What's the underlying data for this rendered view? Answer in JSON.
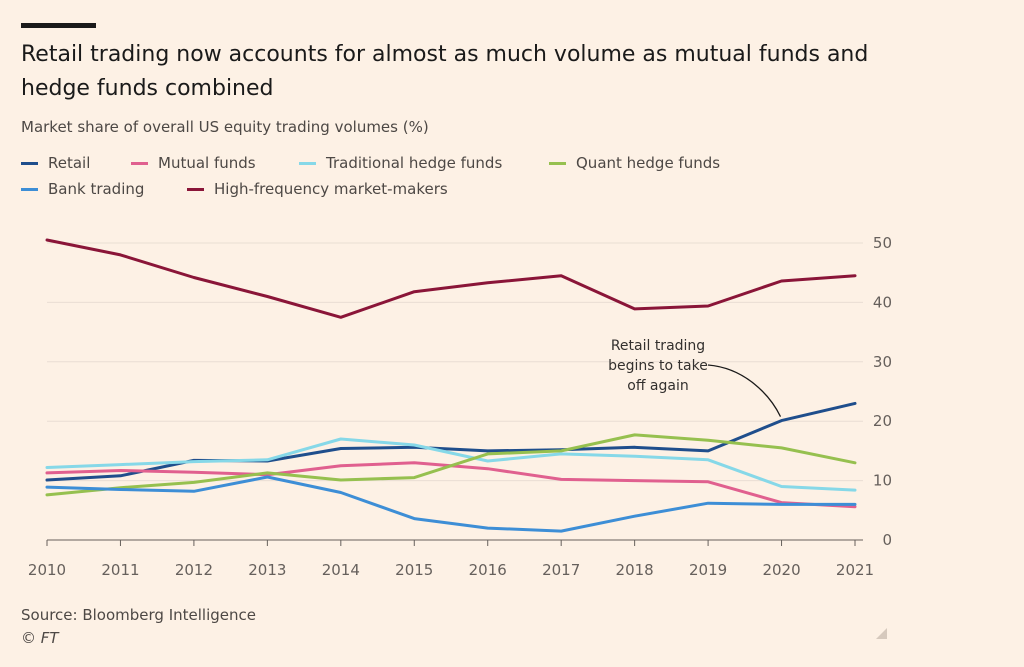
{
  "chart_data": {
    "type": "line",
    "title": "Retail trading now accounts for almost as much volume as mutual funds and hedge funds combined",
    "subtitle": "Market share of overall US equity trading volumes (%)",
    "x": [
      "2010",
      "2011",
      "2012",
      "2013",
      "2014",
      "2015",
      "2016",
      "2017",
      "2018",
      "2019",
      "2020",
      "2021"
    ],
    "ylim": [
      0,
      50
    ],
    "yticks": [
      "0",
      "10",
      "20",
      "30",
      "40",
      "50"
    ],
    "grid": true,
    "legend_position": "top-left",
    "series": [
      {
        "name": "Retail",
        "color": "#1f4e8c",
        "values": [
          10.1,
          10.8,
          13.4,
          13.3,
          15.4,
          15.6,
          15.0,
          15.2,
          15.6,
          15.0,
          20.1,
          23.0
        ]
      },
      {
        "name": "Mutual funds",
        "color": "#e0608f",
        "values": [
          11.3,
          11.7,
          11.4,
          11.0,
          12.5,
          13.0,
          12.0,
          10.2,
          10.0,
          9.8,
          6.3,
          5.6
        ]
      },
      {
        "name": "Traditional hedge funds",
        "color": "#86d8e8",
        "values": [
          12.2,
          12.7,
          13.2,
          13.5,
          17.0,
          16.0,
          13.3,
          14.5,
          14.1,
          13.5,
          9.0,
          8.4
        ]
      },
      {
        "name": "Quant hedge funds",
        "color": "#96c04f",
        "values": [
          7.6,
          8.8,
          9.7,
          11.3,
          10.1,
          10.5,
          14.5,
          15.0,
          17.7,
          16.8,
          15.5,
          13.0
        ]
      },
      {
        "name": "Bank trading",
        "color": "#3d8ed6",
        "values": [
          8.9,
          8.5,
          8.2,
          10.6,
          8.0,
          3.6,
          2.0,
          1.5,
          4.0,
          6.2,
          6.0,
          6.0
        ]
      },
      {
        "name": "High-frequency market-makers",
        "color": "#8a1538",
        "values": [
          50.5,
          48.0,
          44.2,
          41.0,
          37.5,
          41.8,
          43.3,
          44.5,
          38.9,
          39.4,
          43.6,
          44.5
        ]
      }
    ],
    "annotation": {
      "lines": [
        "Retail trading",
        "begins to take",
        "off again"
      ]
    }
  },
  "footer": {
    "source": "Source: Bloomberg Intelligence",
    "credit": "© FT"
  }
}
